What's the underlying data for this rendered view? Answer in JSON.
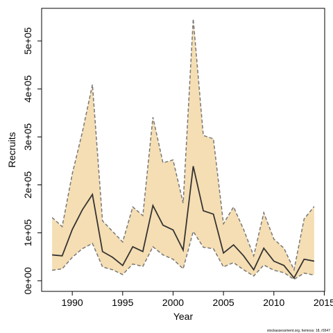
{
  "chart_data": {
    "type": "line",
    "xlabel": "Year",
    "ylabel": "Recruits",
    "footnote": "stockassessment.org, hemoss: 18, r5547",
    "x": [
      1988,
      1989,
      1990,
      1991,
      1992,
      1993,
      1994,
      1995,
      1996,
      1997,
      1998,
      1999,
      2000,
      2001,
      2002,
      2003,
      2004,
      2005,
      2006,
      2007,
      2008,
      2009,
      2010,
      2011,
      2012,
      2013,
      2014
    ],
    "values": [
      54000,
      52000,
      107000,
      148000,
      180000,
      61000,
      49000,
      32000,
      71000,
      61000,
      157000,
      116000,
      106000,
      64000,
      239000,
      146000,
      139000,
      58000,
      75000,
      52000,
      23000,
      68000,
      41000,
      32000,
      6000,
      45000,
      41000
    ],
    "upper": [
      132000,
      113000,
      223000,
      310000,
      409000,
      125000,
      103000,
      81000,
      154000,
      136000,
      341000,
      246000,
      252000,
      162000,
      546000,
      303000,
      296000,
      119000,
      154000,
      107000,
      52000,
      142000,
      87000,
      68000,
      23000,
      129000,
      155000
    ],
    "lower": [
      22000,
      25000,
      49000,
      67000,
      78000,
      29000,
      23000,
      13000,
      35000,
      30000,
      71000,
      54000,
      45000,
      25000,
      103000,
      70000,
      67000,
      29000,
      38000,
      23000,
      10000,
      33000,
      22000,
      17000,
      3000,
      16000,
      12000
    ],
    "color": "#333333",
    "band_color": "#f5deb3",
    "band_edge_color": "#777777",
    "xlim": [
      1986.96,
      2015.04
    ],
    "ylim": [
      -22000,
      568000
    ],
    "xticks": [
      1990,
      1995,
      2000,
      2005,
      2010,
      2015
    ],
    "yticks": [
      {
        "value": 0,
        "label": "0e+00"
      },
      {
        "value": 100000,
        "label": "1e+05"
      },
      {
        "value": 200000,
        "label": "2e+05"
      },
      {
        "value": 300000,
        "label": "3e+05"
      },
      {
        "value": 400000,
        "label": "4e+05"
      },
      {
        "value": 500000,
        "label": "5e+05"
      }
    ]
  }
}
